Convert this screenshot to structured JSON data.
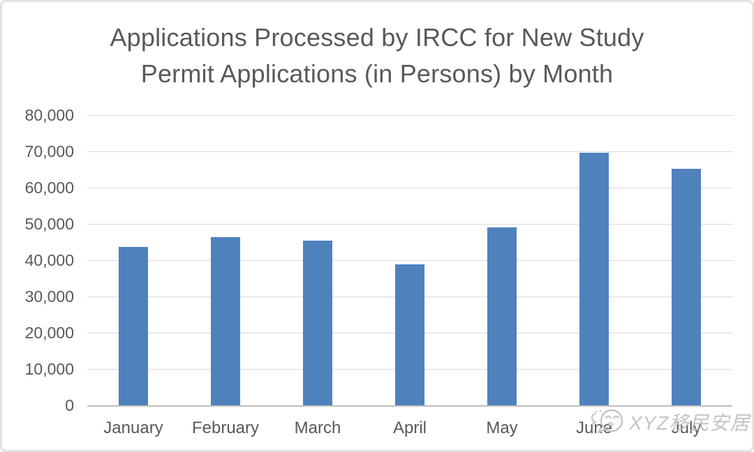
{
  "header": {
    "title_line1": "Applications Processed by IRCC for New Study",
    "title_line2": "Permit Applications (in Persons) by Month"
  },
  "watermark": {
    "icon": "wechat-smiley-icon",
    "text": "XYZ移民安居",
    "color": "#c4c4c4"
  },
  "colors": {
    "bar": "#4f81bd",
    "gridline": "#d9d9d9",
    "axis_line": "#bfbfbf",
    "text": "#595959",
    "border": "#e1e1e1",
    "background": "#ffffff"
  },
  "chart_data": {
    "type": "bar",
    "title": "Applications Processed by IRCC for New Study Permit Applications (in Persons) by Month",
    "categories": [
      "January",
      "February",
      "March",
      "April",
      "May",
      "June",
      "July"
    ],
    "values": [
      43700,
      46300,
      45400,
      38900,
      49000,
      69700,
      65100
    ],
    "series_name": "Applications Processed",
    "xlabel": "",
    "ylabel": "",
    "ylim": [
      0,
      80000
    ],
    "ytick_interval": 10000,
    "ytick_labels": [
      "0",
      "10,000",
      "20,000",
      "30,000",
      "40,000",
      "50,000",
      "60,000",
      "70,000",
      "80,000"
    ],
    "grid": true,
    "legend": false,
    "bar_color": "#4f81bd"
  }
}
